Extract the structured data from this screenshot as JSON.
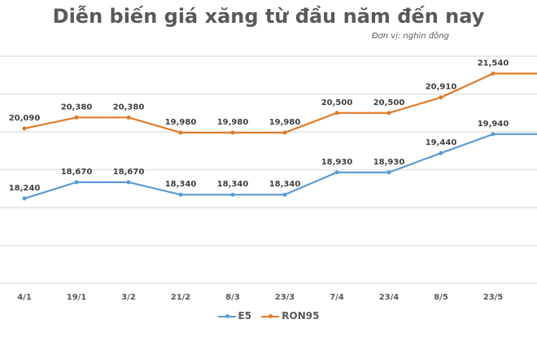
{
  "chart_data": {
    "type": "line",
    "title": "Diễn biến giá xăng từ đầu năm đến nay",
    "subtitle": "Đơn vị: nghìn đồng",
    "categories": [
      "4/1",
      "19/1",
      "3/2",
      "21/2",
      "8/3",
      "23/3",
      "7/4",
      "23/4",
      "8/5",
      "23/5"
    ],
    "series": [
      {
        "name": "E5",
        "color": "#5B9BD5",
        "values": [
          18240,
          18670,
          18670,
          18340,
          18340,
          18340,
          18930,
          18930,
          19440,
          19940
        ]
      },
      {
        "name": "RON95",
        "color": "#E07B2A",
        "values": [
          20090,
          20380,
          20380,
          19980,
          19980,
          19980,
          20500,
          20500,
          20910,
          21540
        ]
      }
    ],
    "ylim": [
      16000,
      22000
    ],
    "grid": true,
    "legend": "bottom",
    "data_labels": true
  }
}
